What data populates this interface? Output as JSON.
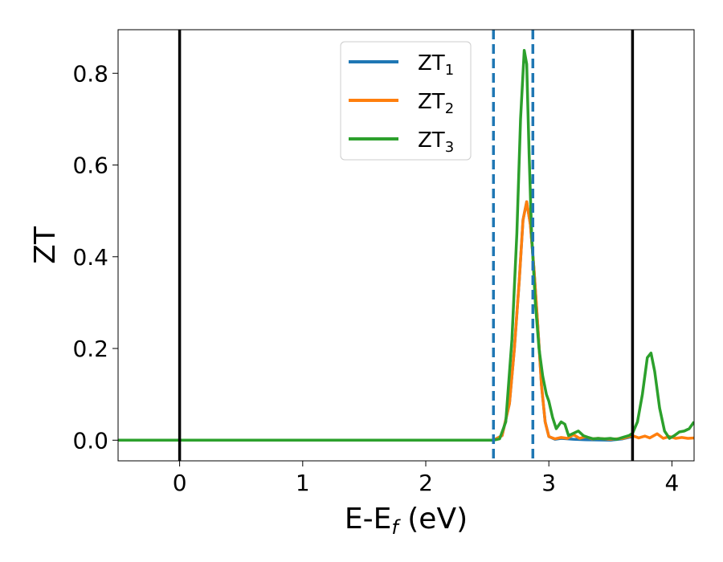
{
  "chart_data": {
    "type": "line",
    "xlabel": {
      "main": "E-E",
      "sub": "f",
      "unit": " (eV)"
    },
    "ylabel": "ZT",
    "xlim": [
      -0.5,
      4.18
    ],
    "ylim": [
      -0.045,
      0.895
    ],
    "x_ticks": [
      0,
      1,
      2,
      3,
      4
    ],
    "y_ticks": [
      0.0,
      0.2,
      0.4,
      0.6,
      0.8
    ],
    "x_tick_labels": [
      "0",
      "1",
      "2",
      "3",
      "4"
    ],
    "y_tick_labels": [
      "0.0",
      "0.2",
      "0.4",
      "0.6",
      "0.8"
    ],
    "grid": false,
    "legend_position": "top-center",
    "vertical_lines": [
      {
        "x": 0.0,
        "style": "solid",
        "color": "#000000"
      },
      {
        "x": 3.68,
        "style": "solid",
        "color": "#000000"
      },
      {
        "x": 2.55,
        "style": "dashed",
        "color": "#1f77b4"
      },
      {
        "x": 2.87,
        "style": "dashed",
        "color": "#1f77b4"
      }
    ],
    "series": [
      {
        "name": "ZT",
        "sub": "1",
        "color": "#1f77b4",
        "points": [
          [
            -0.5,
            0
          ],
          [
            2.55,
            0
          ],
          [
            2.62,
            0.01
          ],
          [
            2.68,
            0.08
          ],
          [
            2.72,
            0.2
          ],
          [
            2.76,
            0.35
          ],
          [
            2.79,
            0.48
          ],
          [
            2.82,
            0.52
          ],
          [
            2.85,
            0.47
          ],
          [
            2.88,
            0.37
          ],
          [
            2.91,
            0.25
          ],
          [
            2.94,
            0.12
          ],
          [
            2.97,
            0.04
          ],
          [
            3.0,
            0.008
          ],
          [
            3.05,
            0.002
          ],
          [
            3.1,
            0.004
          ],
          [
            3.2,
            0.002
          ],
          [
            3.3,
            0.001
          ],
          [
            3.5,
            0.0
          ],
          [
            3.6,
            0.003
          ],
          [
            3.68,
            0.008
          ]
        ]
      },
      {
        "name": "ZT",
        "sub": "2",
        "color": "#ff7f0e",
        "points": [
          [
            -0.5,
            0
          ],
          [
            2.55,
            0
          ],
          [
            2.62,
            0.01
          ],
          [
            2.68,
            0.08
          ],
          [
            2.72,
            0.2
          ],
          [
            2.76,
            0.35
          ],
          [
            2.79,
            0.48
          ],
          [
            2.82,
            0.52
          ],
          [
            2.85,
            0.47
          ],
          [
            2.88,
            0.37
          ],
          [
            2.91,
            0.25
          ],
          [
            2.94,
            0.12
          ],
          [
            2.97,
            0.04
          ],
          [
            3.0,
            0.008
          ],
          [
            3.05,
            0.003
          ],
          [
            3.1,
            0.006
          ],
          [
            3.15,
            0.004
          ],
          [
            3.2,
            0.012
          ],
          [
            3.25,
            0.004
          ],
          [
            3.3,
            0.008
          ],
          [
            3.35,
            0.003
          ],
          [
            3.4,
            0.004
          ],
          [
            3.5,
            0.002
          ],
          [
            3.6,
            0.004
          ],
          [
            3.68,
            0.01
          ],
          [
            3.73,
            0.005
          ],
          [
            3.78,
            0.009
          ],
          [
            3.82,
            0.005
          ],
          [
            3.88,
            0.014
          ],
          [
            3.93,
            0.004
          ],
          [
            3.98,
            0.008
          ],
          [
            4.03,
            0.004
          ],
          [
            4.08,
            0.006
          ],
          [
            4.13,
            0.004
          ],
          [
            4.18,
            0.005
          ]
        ]
      },
      {
        "name": "ZT",
        "sub": "3",
        "color": "#2ca02c",
        "points": [
          [
            -0.5,
            0
          ],
          [
            2.55,
            0
          ],
          [
            2.6,
            0.003
          ],
          [
            2.65,
            0.04
          ],
          [
            2.7,
            0.22
          ],
          [
            2.74,
            0.45
          ],
          [
            2.77,
            0.7
          ],
          [
            2.8,
            0.85
          ],
          [
            2.82,
            0.82
          ],
          [
            2.84,
            0.62
          ],
          [
            2.86,
            0.45
          ],
          [
            2.89,
            0.3
          ],
          [
            2.92,
            0.2
          ],
          [
            2.95,
            0.14
          ],
          [
            2.98,
            0.1
          ],
          [
            3.0,
            0.085
          ],
          [
            3.03,
            0.05
          ],
          [
            3.06,
            0.025
          ],
          [
            3.1,
            0.04
          ],
          [
            3.13,
            0.035
          ],
          [
            3.16,
            0.01
          ],
          [
            3.2,
            0.015
          ],
          [
            3.24,
            0.02
          ],
          [
            3.28,
            0.01
          ],
          [
            3.32,
            0.006
          ],
          [
            3.36,
            0.003
          ],
          [
            3.4,
            0.004
          ],
          [
            3.45,
            0.003
          ],
          [
            3.5,
            0.004
          ],
          [
            3.55,
            0.002
          ],
          [
            3.6,
            0.006
          ],
          [
            3.65,
            0.01
          ],
          [
            3.68,
            0.015
          ],
          [
            3.72,
            0.04
          ],
          [
            3.76,
            0.1
          ],
          [
            3.8,
            0.18
          ],
          [
            3.83,
            0.19
          ],
          [
            3.86,
            0.15
          ],
          [
            3.9,
            0.07
          ],
          [
            3.94,
            0.02
          ],
          [
            3.98,
            0.004
          ],
          [
            4.02,
            0.01
          ],
          [
            4.06,
            0.018
          ],
          [
            4.1,
            0.02
          ],
          [
            4.14,
            0.025
          ],
          [
            4.18,
            0.04
          ]
        ]
      }
    ]
  }
}
